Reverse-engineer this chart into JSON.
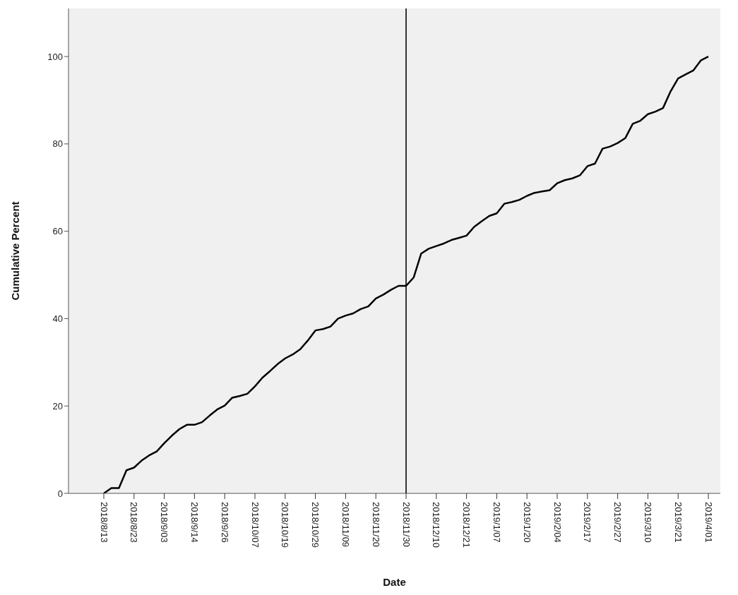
{
  "chart_data": {
    "type": "line",
    "xlabel": "Date",
    "ylabel": "Cumulative Percent",
    "categories": [
      "2018/8/13",
      null,
      null,
      null,
      "2018/8/23",
      null,
      null,
      null,
      "2018/9/03",
      null,
      null,
      null,
      "2018/9/14",
      null,
      null,
      null,
      "2018/9/26",
      null,
      null,
      null,
      "2018/10/07",
      null,
      null,
      null,
      "2018/10/19",
      null,
      null,
      null,
      "2018/10/29",
      null,
      null,
      null,
      "2018/11/09",
      null,
      null,
      null,
      "2018/11/20",
      null,
      null,
      null,
      "2018/11/30",
      null,
      null,
      null,
      "2018/12/10",
      null,
      null,
      null,
      "2018/12/21",
      null,
      null,
      null,
      "2019/1/07",
      null,
      null,
      null,
      "2019/1/20",
      null,
      null,
      null,
      "2019/2/04",
      null,
      null,
      null,
      "2019/2/17",
      null,
      null,
      null,
      "2019/2/27",
      null,
      null,
      null,
      "2019/3/10",
      null,
      null,
      null,
      "2019/3/21",
      null,
      null,
      null,
      "2019/4/01"
    ],
    "series": [
      {
        "color": "#000000",
        "values": [
          0,
          1.2,
          1.2,
          5.3,
          5.9,
          7.5,
          8.7,
          9.6,
          11.5,
          13.2,
          14.7,
          15.7,
          15.7,
          16.3,
          17.8,
          19.2,
          20.1,
          21.9,
          22.3,
          22.8,
          24.5,
          26.5,
          28.0,
          29.6,
          30.9,
          31.8,
          33.0,
          35.0,
          37.3,
          37.6,
          38.2,
          40.0,
          40.7,
          41.2,
          42.2,
          42.8,
          44.6,
          45.5,
          46.6,
          47.5,
          47.5,
          49.4,
          54.9,
          56.0,
          56.6,
          57.2,
          58.0,
          58.5,
          59.0,
          61.0,
          62.3,
          63.5,
          64.1,
          66.3,
          66.7,
          67.2,
          68.1,
          68.8,
          69.1,
          69.4,
          71.0,
          71.7,
          72.1,
          72.8,
          74.9,
          75.5,
          78.9,
          79.4,
          80.2,
          81.3,
          84.6,
          85.3,
          86.8,
          87.4,
          88.2,
          92.0,
          95.0,
          95.9,
          96.8,
          99.1,
          100
        ]
      }
    ],
    "ylim": [
      0,
      111
    ],
    "yticks": [
      0,
      20,
      40,
      60,
      80,
      100
    ],
    "ref_lines": [
      {
        "axis": "x",
        "value": "2018/11/30",
        "color": "#333333"
      }
    ],
    "grid": false,
    "legend": false,
    "marker": "none",
    "line_style": "solid"
  }
}
